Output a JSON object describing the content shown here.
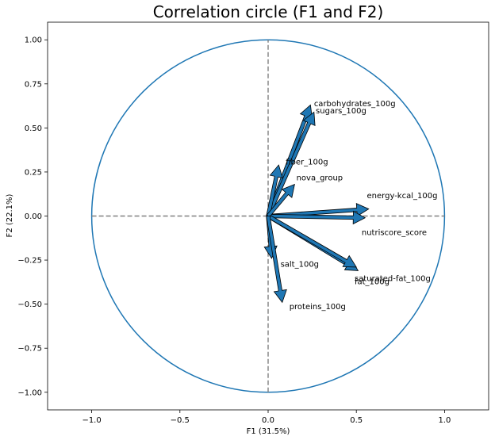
{
  "chart_data": {
    "type": "scatter",
    "title": "Correlation circle (F1 and F2)",
    "xlabel": "F1 (31.5%)",
    "ylabel": "F2 (22.1%)",
    "xlim": [
      -1.25,
      1.25
    ],
    "ylim": [
      -1.1,
      1.1
    ],
    "x_ticks": [
      -1.0,
      -0.5,
      0.0,
      0.5,
      1.0
    ],
    "x_tick_labels": [
      "−1.0",
      "−0.5",
      "0.0",
      "0.5",
      "1.0"
    ],
    "y_ticks": [
      1.0,
      0.75,
      0.5,
      0.25,
      0.0,
      -0.25,
      -0.5,
      -0.75,
      -1.0
    ],
    "y_tick_labels": [
      "1.00",
      "0.75",
      "0.50",
      "0.25",
      "0.00",
      "−0.25",
      "−0.50",
      "−0.75",
      "−1.00"
    ],
    "unit_circle": true,
    "reference_lines": {
      "x": 0,
      "y": 0,
      "style": "dashed"
    },
    "grid": false,
    "colors": {
      "arrow_fill": "#1f77b4",
      "arrow_edge": "#000000",
      "circle": "#1f77b4",
      "reference": "#808080"
    },
    "vectors": [
      {
        "name": "energy-kcal_100g",
        "x": 0.57,
        "y": 0.04,
        "label_x": 0.56,
        "label_y": 0.12
      },
      {
        "name": "nutriscore_score",
        "x": 0.55,
        "y": -0.01,
        "label_x": 0.53,
        "label_y": -0.09
      },
      {
        "name": "saturated-fat_100g",
        "x": 0.51,
        "y": -0.31,
        "label_x": 0.49,
        "label_y": -0.35
      },
      {
        "name": "fat_100g",
        "x": 0.5,
        "y": -0.29,
        "label_x": 0.49,
        "label_y": -0.37
      },
      {
        "name": "carbohydrates_100g",
        "x": 0.24,
        "y": 0.63,
        "label_x": 0.26,
        "label_y": 0.64
      },
      {
        "name": "sugars_100g",
        "x": 0.26,
        "y": 0.59,
        "label_x": 0.27,
        "label_y": 0.6
      },
      {
        "name": "fiber_100g",
        "x": 0.06,
        "y": 0.29,
        "label_x": 0.1,
        "label_y": 0.31
      },
      {
        "name": "nova_group",
        "x": 0.15,
        "y": 0.18,
        "label_x": 0.16,
        "label_y": 0.22
      },
      {
        "name": "salt_100g",
        "x": 0.02,
        "y": -0.24,
        "label_x": 0.07,
        "label_y": -0.27
      },
      {
        "name": "proteins_100g",
        "x": 0.08,
        "y": -0.49,
        "label_x": 0.12,
        "label_y": -0.51
      }
    ]
  }
}
